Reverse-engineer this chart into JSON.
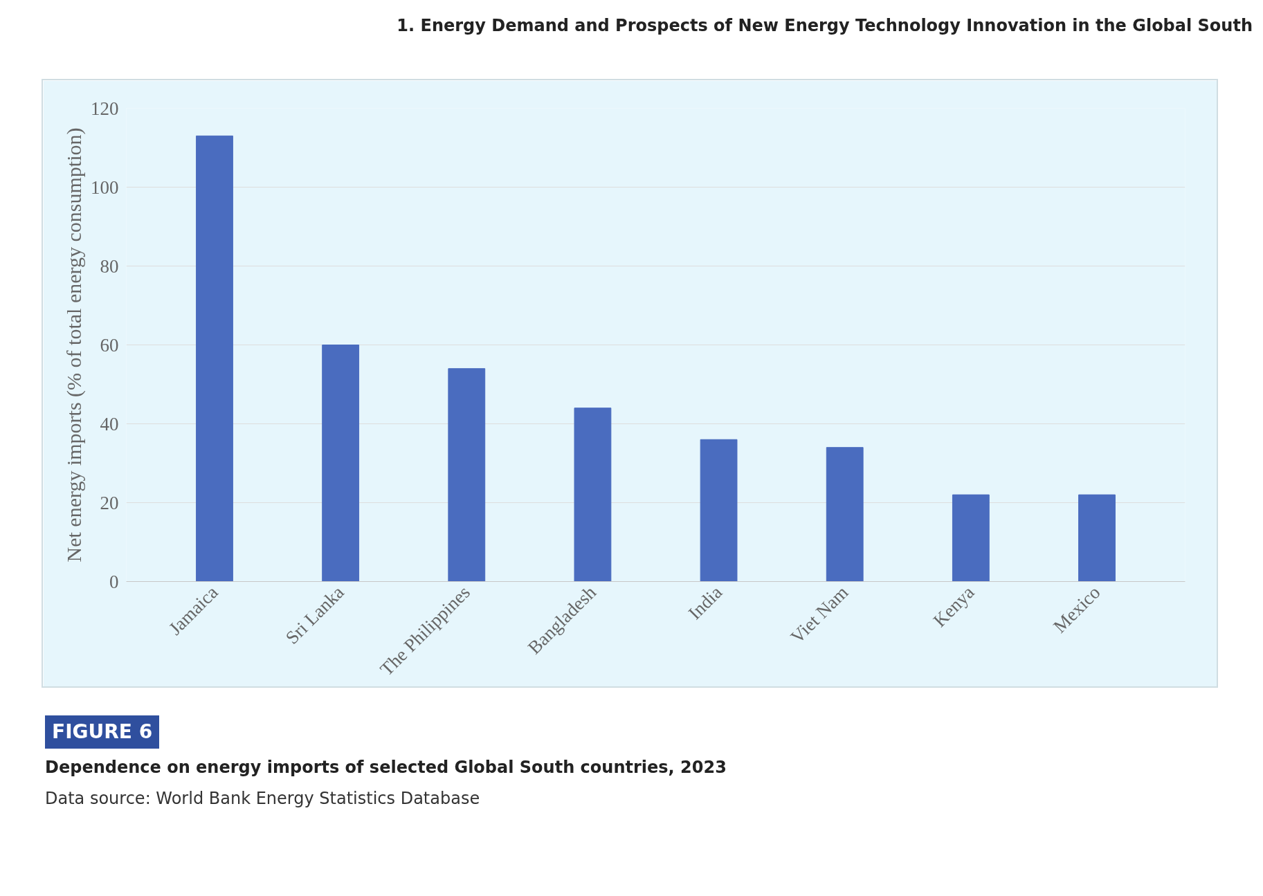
{
  "chart_data": {
    "type": "bar",
    "title": "Dependence on energy imports of selected Global South countries, 2023",
    "ylabel": "Net energy imports (% of total energy consumption)",
    "annotations": [
      "1. Energy Demand and Prospects of New Energy Technology Innovation in the Global South",
      "FIGURE 6",
      "Data source: World Bank Energy Statistics Database"
    ],
    "categories": [
      "Jamaica",
      "Sri Lanka",
      "The Philippines",
      "Bangladesh",
      "India",
      "Viet Nam",
      "Kenya",
      "Mexico"
    ],
    "values": [
      113,
      60,
      54,
      44,
      36,
      34,
      22,
      22
    ],
    "color": "#4a6cbf",
    "ylim": [
      0,
      120
    ],
    "yticks": [
      0,
      20,
      40,
      60,
      80,
      100,
      120
    ],
    "grid": "y"
  }
}
